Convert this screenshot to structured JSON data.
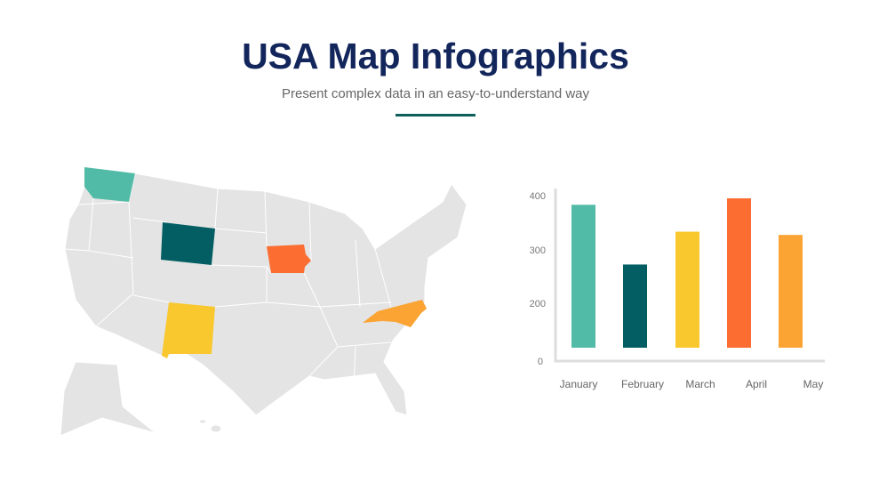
{
  "header": {
    "title": "USA Map Infographics",
    "subtitle": "Present complex data in an easy-to-understand way",
    "accent_color": "#0e5f5c"
  },
  "map": {
    "base_color": "#e4e4e4",
    "highlighted_states": [
      {
        "state": "Washington",
        "color": "#52bba7"
      },
      {
        "state": "Wyoming",
        "color": "#025e62"
      },
      {
        "state": "New Mexico",
        "color": "#f9c72e"
      },
      {
        "state": "Iowa",
        "color": "#fb6d30"
      },
      {
        "state": "North Carolina",
        "color": "#fba333"
      }
    ]
  },
  "chart_data": {
    "type": "bar",
    "categories": [
      "January",
      "February",
      "March",
      "April",
      "May"
    ],
    "values": [
      383,
      272,
      333,
      395,
      327
    ],
    "colors": [
      "#52bba7",
      "#025e62",
      "#f9c72e",
      "#fb6d30",
      "#fba333"
    ],
    "y_ticks": [
      "0",
      "200",
      "300",
      "400"
    ],
    "grid": false,
    "legend": "none"
  }
}
